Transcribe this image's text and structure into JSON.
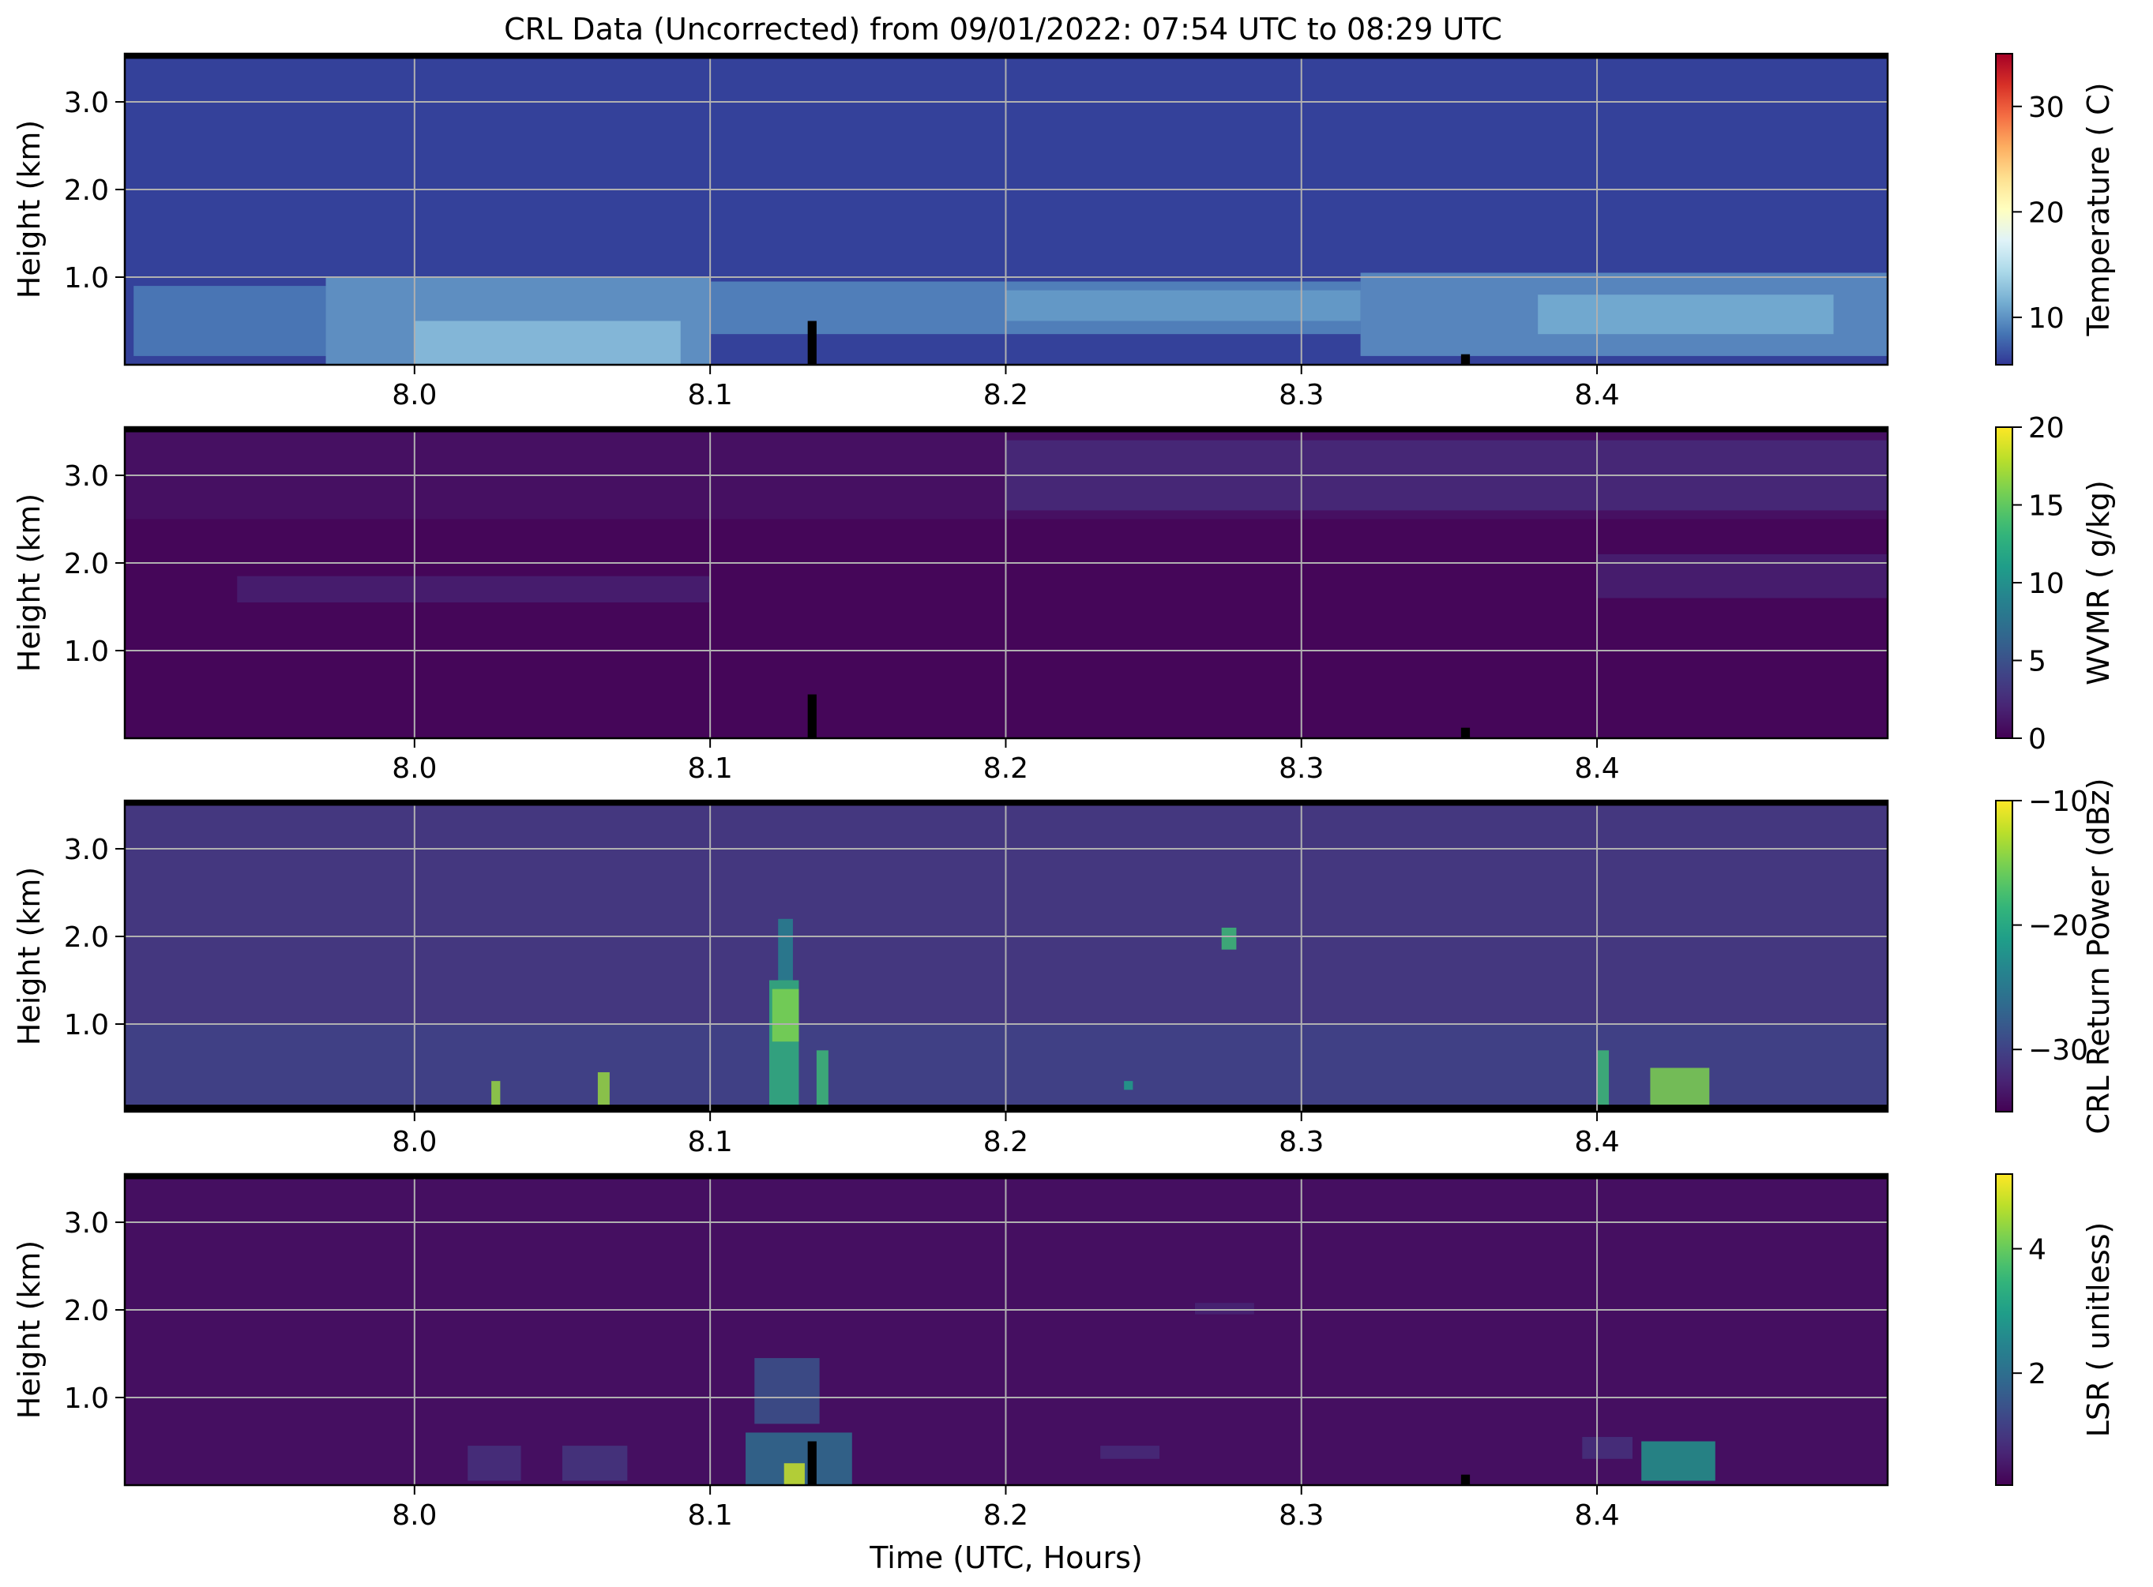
{
  "figure": {
    "title": "CRL Data (Uncorrected) from 09/01/2022: 07:54 UTC to 08:29 UTC",
    "xlabel": "Time (UTC, Hours)"
  },
  "chart_data": [
    {
      "type": "heatmap",
      "variable": "temperature",
      "ylabel": "Height (km)",
      "xlim": [
        7.902,
        8.4983
      ],
      "ylim": [
        0.0,
        3.55
      ],
      "xticks": [
        8.0,
        8.1,
        8.2,
        8.3,
        8.4
      ],
      "xtick_labels": [
        "8.0",
        "8.1",
        "8.2",
        "8.3",
        "8.4"
      ],
      "yticks": [
        1.0,
        2.0,
        3.0
      ],
      "ytick_labels": [
        "1.0",
        "2.0",
        "3.0"
      ],
      "grid": true,
      "colorbar": {
        "label": "Temperature ( C)",
        "colormap": "RdYlBu_r",
        "range": [
          5.5,
          35
        ],
        "ticks": [
          10,
          20,
          30
        ],
        "tick_labels": [
          "10",
          "20",
          "30"
        ]
      },
      "background_value": 6,
      "features": [
        {
          "x": [
            7.905,
            7.97
          ],
          "y": [
            0.1,
            0.9
          ],
          "value": 9
        },
        {
          "x": [
            7.97,
            8.1
          ],
          "y": [
            0.0,
            1.0
          ],
          "value": 10.5
        },
        {
          "x": [
            8.0,
            8.09
          ],
          "y": [
            0.0,
            0.5
          ],
          "value": 12.5
        },
        {
          "x": [
            8.1,
            8.32
          ],
          "y": [
            0.35,
            0.95
          ],
          "value": 9.5
        },
        {
          "x": [
            8.2,
            8.32
          ],
          "y": [
            0.5,
            0.85
          ],
          "value": 10.5
        },
        {
          "x": [
            8.32,
            8.4983
          ],
          "y": [
            0.1,
            1.05
          ],
          "value": 10
        },
        {
          "x": [
            8.38,
            8.48
          ],
          "y": [
            0.35,
            0.8
          ],
          "value": 11.5
        }
      ],
      "missing": [
        {
          "x": [
            8.133,
            8.136
          ],
          "y": [
            0.0,
            0.5
          ]
        },
        {
          "x": [
            8.354,
            8.357
          ],
          "y": [
            0.0,
            0.12
          ]
        }
      ]
    },
    {
      "type": "heatmap",
      "variable": "wvmr",
      "ylabel": "Height (km)",
      "xlim": [
        7.902,
        8.4983
      ],
      "ylim": [
        0.0,
        3.55
      ],
      "xticks": [
        8.0,
        8.1,
        8.2,
        8.3,
        8.4
      ],
      "xtick_labels": [
        "8.0",
        "8.1",
        "8.2",
        "8.3",
        "8.4"
      ],
      "yticks": [
        1.0,
        2.0,
        3.0
      ],
      "ytick_labels": [
        "1.0",
        "2.0",
        "3.0"
      ],
      "grid": true,
      "colorbar": {
        "label": "WVMR ( g/kg)",
        "colormap": "viridis",
        "range": [
          0,
          20
        ],
        "ticks": [
          0,
          5,
          10,
          15,
          20
        ],
        "tick_labels": [
          "0",
          "5",
          "10",
          "15",
          "20"
        ]
      },
      "background_value": 0.3,
      "features": [
        {
          "x": [
            7.902,
            8.4983
          ],
          "y": [
            2.5,
            3.55
          ],
          "value": 1.0
        },
        {
          "x": [
            8.2,
            8.4983
          ],
          "y": [
            2.6,
            3.4
          ],
          "value": 2.5
        },
        {
          "x": [
            7.94,
            8.1
          ],
          "y": [
            1.55,
            1.85
          ],
          "value": 1.8
        },
        {
          "x": [
            8.4,
            8.4983
          ],
          "y": [
            1.6,
            2.1
          ],
          "value": 1.8
        }
      ],
      "missing": [
        {
          "x": [
            8.133,
            8.136
          ],
          "y": [
            0.0,
            0.5
          ]
        },
        {
          "x": [
            8.354,
            8.357
          ],
          "y": [
            0.0,
            0.12
          ]
        }
      ]
    },
    {
      "type": "heatmap",
      "variable": "return_power",
      "ylabel": "Height (km)",
      "xlim": [
        7.902,
        8.4983
      ],
      "ylim": [
        0.0,
        3.55
      ],
      "xticks": [
        8.0,
        8.1,
        8.2,
        8.3,
        8.4
      ],
      "xtick_labels": [
        "8.0",
        "8.1",
        "8.2",
        "8.3",
        "8.4"
      ],
      "yticks": [
        1.0,
        2.0,
        3.0
      ],
      "ytick_labels": [
        "1.0",
        "2.0",
        "3.0"
      ],
      "grid": true,
      "colorbar": {
        "label": "CRL Return Power (dBz)",
        "colormap": "viridis",
        "range": [
          -35,
          -10
        ],
        "ticks": [
          -30,
          -20,
          -10
        ],
        "tick_labels": [
          "−30",
          "−20",
          "−10"
        ]
      },
      "background_value": -31,
      "features": [
        {
          "x": [
            7.902,
            8.4983
          ],
          "y": [
            0.0,
            1.0
          ],
          "value": -30
        },
        {
          "x": [
            8.12,
            8.13
          ],
          "y": [
            0.0,
            1.5
          ],
          "value": -19
        },
        {
          "x": [
            8.123,
            8.128
          ],
          "y": [
            1.5,
            2.2
          ],
          "value": -24
        },
        {
          "x": [
            8.121,
            8.13
          ],
          "y": [
            0.8,
            1.4
          ],
          "value": -15
        },
        {
          "x": [
            8.136,
            8.14
          ],
          "y": [
            0.05,
            0.7
          ],
          "value": -18
        },
        {
          "x": [
            8.026,
            8.029
          ],
          "y": [
            0.05,
            0.35
          ],
          "value": -14
        },
        {
          "x": [
            8.062,
            8.066
          ],
          "y": [
            0.05,
            0.45
          ],
          "value": -14
        },
        {
          "x": [
            8.24,
            8.243
          ],
          "y": [
            0.25,
            0.35
          ],
          "value": -21
        },
        {
          "x": [
            8.273,
            8.278
          ],
          "y": [
            1.85,
            2.1
          ],
          "value": -18
        },
        {
          "x": [
            8.4,
            8.404
          ],
          "y": [
            0.05,
            0.7
          ],
          "value": -18
        },
        {
          "x": [
            8.418,
            8.438
          ],
          "y": [
            0.05,
            0.5
          ],
          "value": -15
        }
      ],
      "missing": [
        {
          "x": [
            7.902,
            8.4983
          ],
          "y": [
            0.0,
            0.08
          ]
        }
      ]
    },
    {
      "type": "heatmap",
      "variable": "lsr",
      "ylabel": "Height (km)",
      "xlim": [
        7.902,
        8.4983
      ],
      "ylim": [
        0.0,
        3.55
      ],
      "xticks": [
        8.0,
        8.1,
        8.2,
        8.3,
        8.4
      ],
      "xtick_labels": [
        "8.0",
        "8.1",
        "8.2",
        "8.3",
        "8.4"
      ],
      "yticks": [
        1.0,
        2.0,
        3.0
      ],
      "ytick_labels": [
        "1.0",
        "2.0",
        "3.0"
      ],
      "grid": true,
      "colorbar": {
        "label": "LSR ( unitless)",
        "colormap": "viridis",
        "range": [
          0.2,
          5.2
        ],
        "ticks": [
          2,
          4
        ],
        "tick_labels": [
          "2",
          "4"
        ]
      },
      "background_value": 0.4,
      "features": [
        {
          "x": [
            8.115,
            8.137
          ],
          "y": [
            0.7,
            1.45
          ],
          "value": 1.5
        },
        {
          "x": [
            8.112,
            8.148
          ],
          "y": [
            0.0,
            0.6
          ],
          "value": 2.0
        },
        {
          "x": [
            8.125,
            8.132
          ],
          "y": [
            0.0,
            0.25
          ],
          "value": 4.8
        },
        {
          "x": [
            8.018,
            8.036
          ],
          "y": [
            0.05,
            0.45
          ],
          "value": 0.9
        },
        {
          "x": [
            8.05,
            8.072
          ],
          "y": [
            0.05,
            0.45
          ],
          "value": 1.0
        },
        {
          "x": [
            8.232,
            8.252
          ],
          "y": [
            0.3,
            0.45
          ],
          "value": 0.8
        },
        {
          "x": [
            8.264,
            8.284
          ],
          "y": [
            1.95,
            2.08
          ],
          "value": 0.7
        },
        {
          "x": [
            8.395,
            8.412
          ],
          "y": [
            0.3,
            0.55
          ],
          "value": 0.9
        },
        {
          "x": [
            8.415,
            8.44
          ],
          "y": [
            0.05,
            0.5
          ],
          "value": 2.8
        }
      ],
      "missing": [
        {
          "x": [
            8.133,
            8.136
          ],
          "y": [
            0.0,
            0.5
          ]
        },
        {
          "x": [
            8.354,
            8.357
          ],
          "y": [
            0.0,
            0.12
          ]
        }
      ]
    }
  ]
}
